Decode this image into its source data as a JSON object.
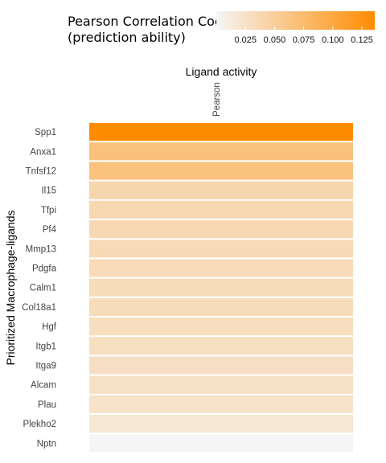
{
  "chart_data": {
    "type": "heatmap",
    "legend": {
      "title_line1": "Pearson Correlation Coef.",
      "title_line2": "(prediction ability)",
      "ticks": [
        "0.025",
        "0.050",
        "0.075",
        "0.100",
        "0.125"
      ],
      "tick_values": [
        0.025,
        0.05,
        0.075,
        0.1,
        0.125
      ],
      "range": [
        0.0,
        0.136
      ],
      "color_low": "#f5f5f5",
      "color_high": "#ff8c00",
      "placement": "top"
    },
    "x_title": "Ligand activity",
    "x_categories": [
      "Pearson"
    ],
    "ylabel": "Prioritized Macrophage-ligands",
    "rows": [
      {
        "label": "Spp1",
        "value": 0.136
      },
      {
        "label": "Anxa1",
        "value": 0.067
      },
      {
        "label": "Tnfsf12",
        "value": 0.066
      },
      {
        "label": "Il15",
        "value": 0.04
      },
      {
        "label": "Tfpi",
        "value": 0.038
      },
      {
        "label": "Pf4",
        "value": 0.037
      },
      {
        "label": "Mmp13",
        "value": 0.035
      },
      {
        "label": "Pdgfa",
        "value": 0.034
      },
      {
        "label": "Calm1",
        "value": 0.033
      },
      {
        "label": "Col18a1",
        "value": 0.032
      },
      {
        "label": "Hgf",
        "value": 0.03
      },
      {
        "label": "Itgb1",
        "value": 0.029
      },
      {
        "label": "Itga9",
        "value": 0.028
      },
      {
        "label": "Alcam",
        "value": 0.026
      },
      {
        "label": "Plau",
        "value": 0.024
      },
      {
        "label": "Plekho2",
        "value": 0.018
      },
      {
        "label": "Nptn",
        "value": 0.0
      }
    ]
  }
}
